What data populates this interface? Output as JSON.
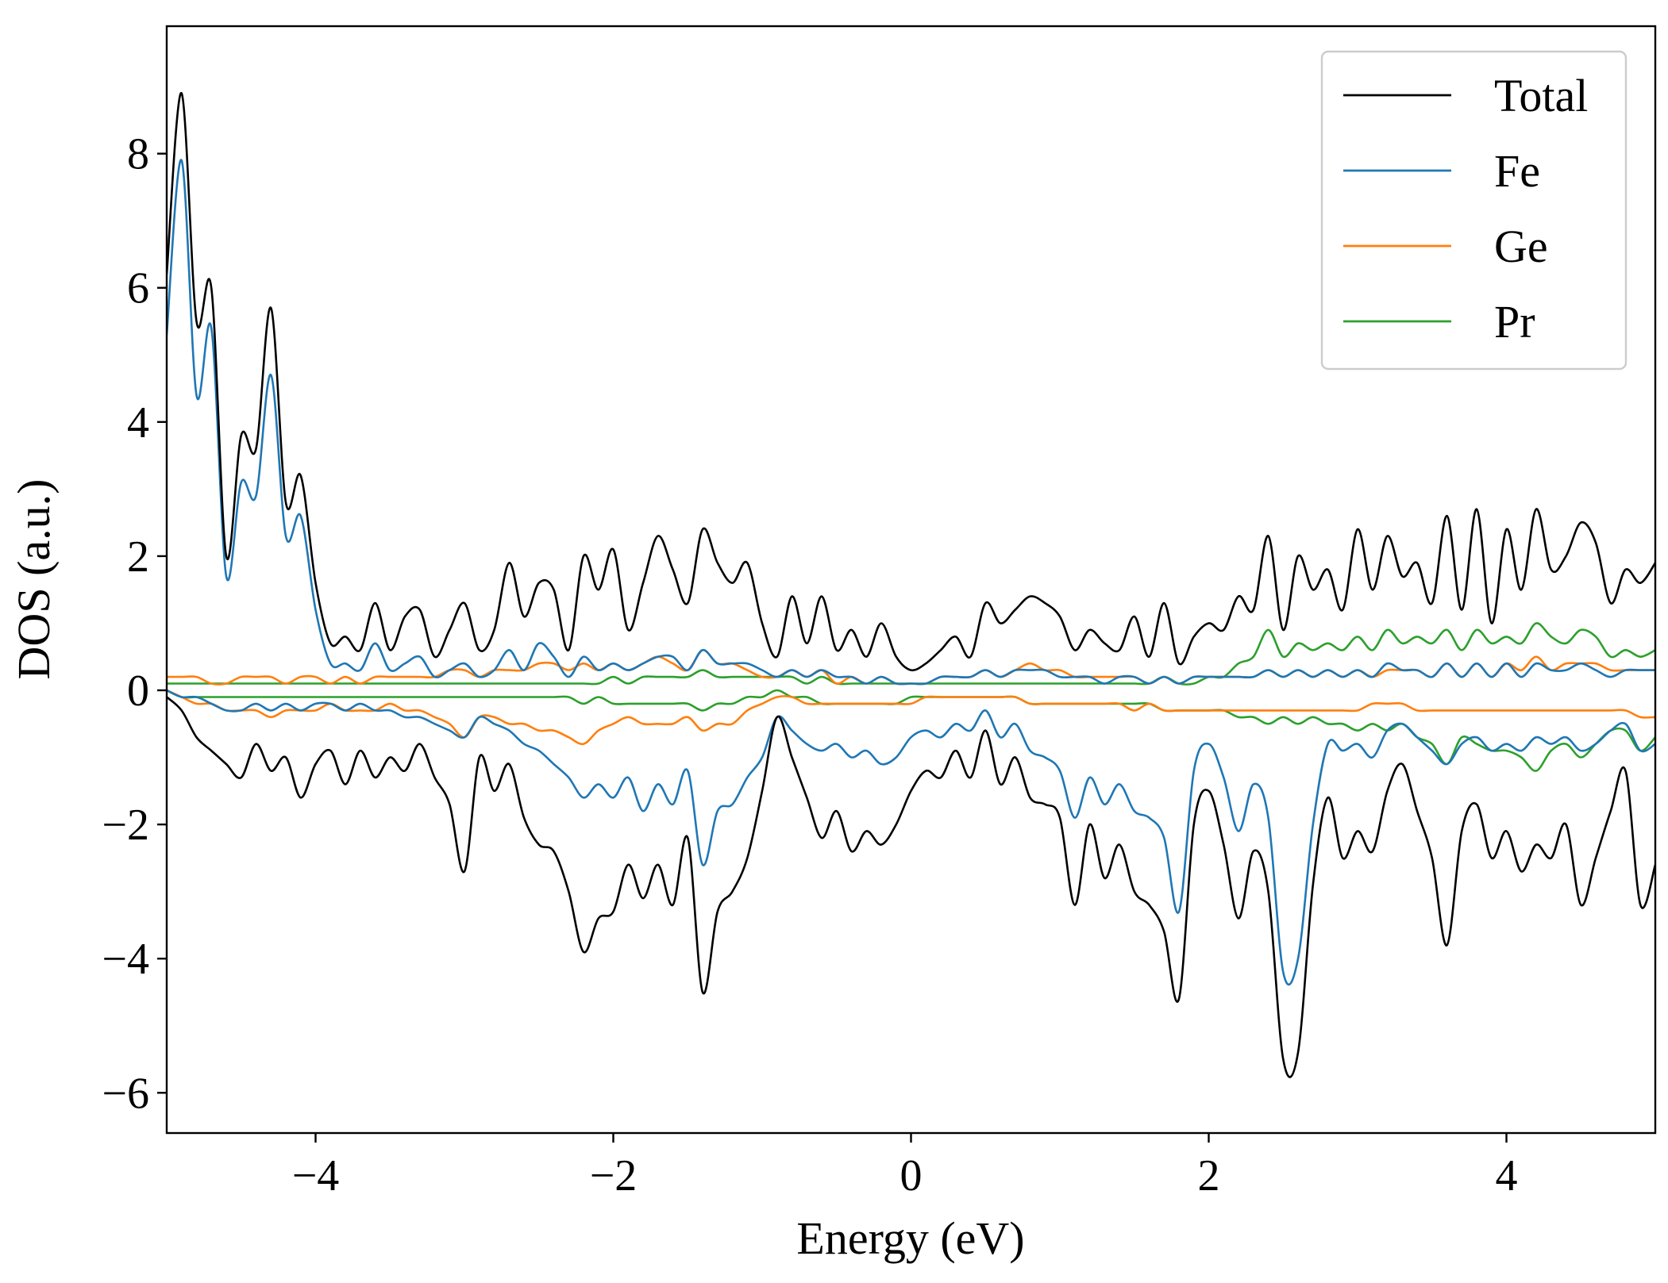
{
  "chart_data": {
    "type": "line",
    "title": "",
    "xlabel": "Energy (eV)",
    "ylabel": "DOS (a.u.)",
    "xlim": [
      -5,
      5
    ],
    "ylim": [
      -6.6,
      9.9
    ],
    "xticks": [
      -4,
      -2,
      0,
      2,
      4
    ],
    "xtick_labels": [
      "−4",
      "−2",
      "0",
      "2",
      "4"
    ],
    "yticks": [
      -6,
      -4,
      -2,
      0,
      2,
      4,
      6,
      8
    ],
    "ytick_labels": [
      "−6",
      "−4",
      "−2",
      "0",
      "2",
      "4",
      "6",
      "8"
    ],
    "grid": false,
    "legend_position": "top-right",
    "x": [
      -5.0,
      -4.9,
      -4.8,
      -4.7,
      -4.6,
      -4.5,
      -4.4,
      -4.3,
      -4.2,
      -4.1,
      -4.0,
      -3.9,
      -3.8,
      -3.7,
      -3.6,
      -3.5,
      -3.4,
      -3.3,
      -3.2,
      -3.1,
      -3.0,
      -2.9,
      -2.8,
      -2.7,
      -2.6,
      -2.5,
      -2.4,
      -2.3,
      -2.2,
      -2.1,
      -2.0,
      -1.9,
      -1.8,
      -1.7,
      -1.6,
      -1.5,
      -1.4,
      -1.3,
      -1.2,
      -1.1,
      -1.0,
      -0.9,
      -0.8,
      -0.7,
      -0.6,
      -0.5,
      -0.4,
      -0.3,
      -0.2,
      -0.1,
      0.0,
      0.1,
      0.2,
      0.3,
      0.4,
      0.5,
      0.6,
      0.7,
      0.8,
      0.9,
      1.0,
      1.1,
      1.2,
      1.3,
      1.4,
      1.5,
      1.6,
      1.7,
      1.8,
      1.9,
      2.0,
      2.1,
      2.2,
      2.3,
      2.4,
      2.5,
      2.6,
      2.7,
      2.8,
      2.9,
      3.0,
      3.1,
      3.2,
      3.3,
      3.4,
      3.5,
      3.6,
      3.7,
      3.8,
      3.9,
      4.0,
      4.1,
      4.2,
      4.3,
      4.4,
      4.5,
      4.6,
      4.7,
      4.8,
      4.9,
      5.0
    ],
    "series": [
      {
        "name": "Total",
        "color": "#000000",
        "up": [
          6.2,
          8.9,
          5.5,
          6.0,
          2.0,
          3.8,
          3.6,
          5.7,
          2.8,
          3.2,
          1.6,
          0.7,
          0.8,
          0.6,
          1.3,
          0.6,
          1.1,
          1.2,
          0.5,
          0.9,
          1.3,
          0.6,
          0.9,
          1.9,
          1.1,
          1.6,
          1.5,
          0.6,
          2.0,
          1.5,
          2.1,
          0.9,
          1.6,
          2.3,
          1.8,
          1.3,
          2.4,
          1.9,
          1.6,
          1.9,
          1.0,
          0.5,
          1.4,
          0.7,
          1.4,
          0.6,
          0.9,
          0.5,
          1.0,
          0.5,
          0.3,
          0.4,
          0.6,
          0.8,
          0.5,
          1.3,
          1.0,
          1.2,
          1.4,
          1.3,
          1.1,
          0.6,
          0.9,
          0.7,
          0.6,
          1.1,
          0.5,
          1.3,
          0.4,
          0.8,
          1.0,
          0.9,
          1.4,
          1.2,
          2.3,
          0.9,
          2.0,
          1.5,
          1.8,
          1.2,
          2.4,
          1.5,
          2.3,
          1.7,
          1.9,
          1.3,
          2.6,
          1.2,
          2.7,
          1.0,
          2.4,
          1.5,
          2.7,
          1.8,
          2.0,
          2.5,
          2.2,
          1.3,
          1.8,
          1.6,
          1.9
        ],
        "down": [
          -0.1,
          -0.3,
          -0.7,
          -0.9,
          -1.1,
          -1.3,
          -0.8,
          -1.2,
          -1.0,
          -1.6,
          -1.1,
          -0.9,
          -1.4,
          -0.9,
          -1.3,
          -1.0,
          -1.2,
          -0.8,
          -1.3,
          -1.7,
          -2.7,
          -1.0,
          -1.5,
          -1.1,
          -1.9,
          -2.3,
          -2.4,
          -3.0,
          -3.9,
          -3.4,
          -3.3,
          -2.6,
          -3.1,
          -2.6,
          -3.2,
          -2.2,
          -4.5,
          -3.3,
          -3.0,
          -2.5,
          -1.5,
          -0.4,
          -1.0,
          -1.6,
          -2.2,
          -1.8,
          -2.4,
          -2.1,
          -2.3,
          -2.0,
          -1.5,
          -1.2,
          -1.3,
          -0.9,
          -1.3,
          -0.6,
          -1.4,
          -1.0,
          -1.6,
          -1.7,
          -1.9,
          -3.2,
          -2.0,
          -2.8,
          -2.3,
          -3.0,
          -3.2,
          -3.6,
          -4.6,
          -2.0,
          -1.5,
          -2.3,
          -3.4,
          -2.4,
          -3.0,
          -5.5,
          -5.4,
          -2.9,
          -1.6,
          -2.5,
          -2.1,
          -2.4,
          -1.5,
          -1.1,
          -1.8,
          -2.5,
          -3.8,
          -2.1,
          -1.7,
          -2.5,
          -2.1,
          -2.7,
          -2.3,
          -2.5,
          -2.0,
          -3.2,
          -2.5,
          -1.8,
          -1.2,
          -3.2,
          -2.6
        ]
      },
      {
        "name": "Fe",
        "color": "#1f77b4",
        "up": [
          5.3,
          7.9,
          4.4,
          5.4,
          1.7,
          3.1,
          2.9,
          4.7,
          2.3,
          2.6,
          1.2,
          0.4,
          0.4,
          0.3,
          0.7,
          0.3,
          0.4,
          0.5,
          0.2,
          0.3,
          0.4,
          0.2,
          0.3,
          0.6,
          0.3,
          0.7,
          0.5,
          0.2,
          0.5,
          0.3,
          0.4,
          0.3,
          0.4,
          0.5,
          0.5,
          0.3,
          0.6,
          0.4,
          0.4,
          0.4,
          0.3,
          0.2,
          0.3,
          0.2,
          0.3,
          0.2,
          0.2,
          0.1,
          0.2,
          0.1,
          0.1,
          0.1,
          0.2,
          0.2,
          0.2,
          0.3,
          0.2,
          0.3,
          0.3,
          0.3,
          0.2,
          0.2,
          0.2,
          0.1,
          0.2,
          0.2,
          0.1,
          0.2,
          0.1,
          0.2,
          0.2,
          0.2,
          0.2,
          0.2,
          0.3,
          0.2,
          0.3,
          0.2,
          0.3,
          0.2,
          0.3,
          0.2,
          0.4,
          0.3,
          0.3,
          0.2,
          0.4,
          0.2,
          0.4,
          0.2,
          0.4,
          0.2,
          0.4,
          0.3,
          0.3,
          0.4,
          0.3,
          0.2,
          0.3,
          0.3,
          0.3
        ],
        "down": [
          0.0,
          -0.1,
          -0.1,
          -0.2,
          -0.3,
          -0.3,
          -0.2,
          -0.3,
          -0.2,
          -0.3,
          -0.2,
          -0.2,
          -0.3,
          -0.2,
          -0.3,
          -0.3,
          -0.4,
          -0.4,
          -0.5,
          -0.6,
          -0.7,
          -0.4,
          -0.5,
          -0.6,
          -0.8,
          -0.9,
          -1.1,
          -1.3,
          -1.6,
          -1.4,
          -1.6,
          -1.3,
          -1.8,
          -1.4,
          -1.7,
          -1.2,
          -2.6,
          -1.8,
          -1.7,
          -1.3,
          -1.0,
          -0.4,
          -0.6,
          -0.8,
          -0.9,
          -0.8,
          -1.0,
          -0.9,
          -1.1,
          -1.0,
          -0.7,
          -0.6,
          -0.7,
          -0.5,
          -0.6,
          -0.3,
          -0.7,
          -0.5,
          -0.9,
          -1.0,
          -1.2,
          -1.9,
          -1.3,
          -1.7,
          -1.4,
          -1.8,
          -1.9,
          -2.2,
          -3.3,
          -1.2,
          -0.8,
          -1.3,
          -2.1,
          -1.4,
          -1.9,
          -4.2,
          -4.0,
          -2.0,
          -0.8,
          -0.9,
          -0.8,
          -1.0,
          -0.6,
          -0.5,
          -0.7,
          -0.9,
          -1.1,
          -0.8,
          -0.7,
          -0.9,
          -0.8,
          -0.9,
          -0.7,
          -0.8,
          -0.7,
          -0.9,
          -0.8,
          -0.6,
          -0.5,
          -0.9,
          -0.8
        ]
      },
      {
        "name": "Ge",
        "color": "#ff7f0e",
        "up": [
          0.2,
          0.2,
          0.2,
          0.1,
          0.1,
          0.2,
          0.2,
          0.2,
          0.1,
          0.2,
          0.2,
          0.1,
          0.2,
          0.1,
          0.2,
          0.2,
          0.2,
          0.2,
          0.2,
          0.3,
          0.3,
          0.2,
          0.3,
          0.3,
          0.3,
          0.4,
          0.4,
          0.3,
          0.4,
          0.3,
          0.4,
          0.3,
          0.4,
          0.5,
          0.4,
          0.3,
          0.6,
          0.4,
          0.4,
          0.3,
          0.2,
          0.2,
          0.3,
          0.2,
          0.3,
          0.1,
          0.2,
          0.1,
          0.2,
          0.1,
          0.1,
          0.1,
          0.2,
          0.2,
          0.2,
          0.3,
          0.2,
          0.3,
          0.4,
          0.3,
          0.3,
          0.2,
          0.2,
          0.2,
          0.2,
          0.2,
          0.1,
          0.2,
          0.1,
          0.2,
          0.2,
          0.2,
          0.2,
          0.2,
          0.3,
          0.2,
          0.3,
          0.2,
          0.3,
          0.2,
          0.3,
          0.2,
          0.3,
          0.3,
          0.3,
          0.2,
          0.4,
          0.2,
          0.4,
          0.2,
          0.4,
          0.3,
          0.5,
          0.3,
          0.4,
          0.4,
          0.4,
          0.3,
          0.3,
          0.3,
          0.3
        ],
        "down": [
          0.0,
          -0.1,
          -0.2,
          -0.2,
          -0.3,
          -0.3,
          -0.3,
          -0.4,
          -0.3,
          -0.3,
          -0.3,
          -0.2,
          -0.3,
          -0.3,
          -0.3,
          -0.2,
          -0.3,
          -0.3,
          -0.4,
          -0.5,
          -0.7,
          -0.4,
          -0.4,
          -0.5,
          -0.5,
          -0.6,
          -0.6,
          -0.7,
          -0.8,
          -0.6,
          -0.5,
          -0.4,
          -0.5,
          -0.5,
          -0.5,
          -0.4,
          -0.6,
          -0.5,
          -0.5,
          -0.3,
          -0.2,
          -0.1,
          -0.1,
          -0.2,
          -0.2,
          -0.2,
          -0.2,
          -0.2,
          -0.2,
          -0.2,
          -0.2,
          -0.1,
          -0.1,
          -0.1,
          -0.1,
          -0.1,
          -0.1,
          -0.1,
          -0.2,
          -0.2,
          -0.2,
          -0.2,
          -0.2,
          -0.2,
          -0.2,
          -0.3,
          -0.2,
          -0.3,
          -0.3,
          -0.3,
          -0.3,
          -0.3,
          -0.3,
          -0.3,
          -0.3,
          -0.3,
          -0.3,
          -0.3,
          -0.3,
          -0.3,
          -0.3,
          -0.2,
          -0.2,
          -0.2,
          -0.3,
          -0.3,
          -0.3,
          -0.3,
          -0.3,
          -0.3,
          -0.3,
          -0.3,
          -0.3,
          -0.3,
          -0.3,
          -0.3,
          -0.3,
          -0.3,
          -0.3,
          -0.4,
          -0.4
        ]
      },
      {
        "name": "Pr",
        "color": "#2ca02c",
        "up": [
          0.1,
          0.1,
          0.1,
          0.1,
          0.1,
          0.1,
          0.1,
          0.1,
          0.1,
          0.1,
          0.1,
          0.1,
          0.1,
          0.1,
          0.1,
          0.1,
          0.1,
          0.1,
          0.1,
          0.1,
          0.1,
          0.1,
          0.1,
          0.1,
          0.1,
          0.1,
          0.1,
          0.1,
          0.1,
          0.1,
          0.2,
          0.1,
          0.2,
          0.2,
          0.2,
          0.2,
          0.3,
          0.2,
          0.2,
          0.2,
          0.2,
          0.2,
          0.2,
          0.1,
          0.2,
          0.1,
          0.1,
          0.1,
          0.1,
          0.1,
          0.1,
          0.1,
          0.1,
          0.1,
          0.1,
          0.1,
          0.1,
          0.1,
          0.1,
          0.1,
          0.1,
          0.1,
          0.1,
          0.1,
          0.1,
          0.1,
          0.1,
          0.2,
          0.1,
          0.1,
          0.2,
          0.2,
          0.4,
          0.5,
          0.9,
          0.5,
          0.7,
          0.6,
          0.7,
          0.6,
          0.8,
          0.6,
          0.9,
          0.7,
          0.8,
          0.7,
          0.9,
          0.6,
          0.9,
          0.7,
          0.8,
          0.7,
          1.0,
          0.8,
          0.7,
          0.9,
          0.8,
          0.5,
          0.6,
          0.5,
          0.6
        ],
        "down": [
          0.0,
          -0.1,
          -0.1,
          -0.1,
          -0.1,
          -0.1,
          -0.1,
          -0.1,
          -0.1,
          -0.1,
          -0.1,
          -0.1,
          -0.1,
          -0.1,
          -0.1,
          -0.1,
          -0.1,
          -0.1,
          -0.1,
          -0.1,
          -0.1,
          -0.1,
          -0.1,
          -0.1,
          -0.1,
          -0.1,
          -0.1,
          -0.1,
          -0.2,
          -0.1,
          -0.2,
          -0.2,
          -0.2,
          -0.2,
          -0.2,
          -0.2,
          -0.3,
          -0.2,
          -0.2,
          -0.1,
          -0.1,
          0.0,
          -0.1,
          -0.1,
          -0.2,
          -0.2,
          -0.2,
          -0.2,
          -0.2,
          -0.2,
          -0.1,
          -0.1,
          -0.1,
          -0.1,
          -0.1,
          -0.1,
          -0.1,
          -0.1,
          -0.2,
          -0.2,
          -0.2,
          -0.2,
          -0.2,
          -0.2,
          -0.2,
          -0.2,
          -0.2,
          -0.3,
          -0.3,
          -0.3,
          -0.3,
          -0.3,
          -0.4,
          -0.4,
          -0.5,
          -0.4,
          -0.5,
          -0.4,
          -0.5,
          -0.5,
          -0.6,
          -0.5,
          -0.6,
          -0.5,
          -0.7,
          -0.8,
          -1.1,
          -0.7,
          -0.8,
          -0.9,
          -0.9,
          -1.0,
          -1.2,
          -0.9,
          -0.8,
          -1.0,
          -0.8,
          -0.6,
          -0.6,
          -0.9,
          -0.7
        ]
      }
    ]
  }
}
